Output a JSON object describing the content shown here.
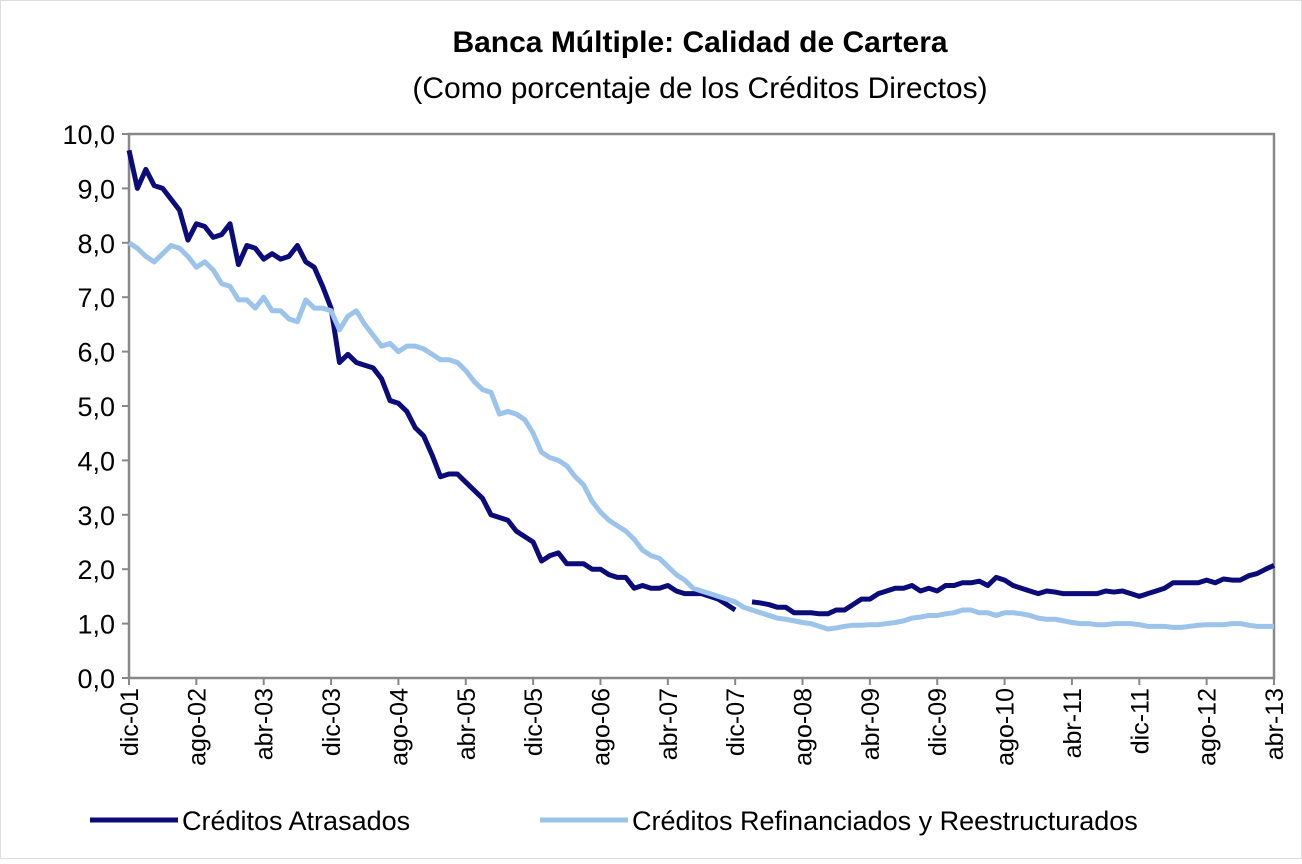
{
  "chart_data": {
    "type": "line",
    "title": "Banca Múltiple: Calidad de Cartera",
    "subtitle": "(Como porcentaje de los Créditos Directos)",
    "categories": [
      "dic-01",
      null,
      null,
      null,
      null,
      null,
      null,
      null,
      "ago-02",
      null,
      null,
      null,
      null,
      null,
      null,
      null,
      "abr-03",
      null,
      null,
      null,
      null,
      null,
      null,
      null,
      "dic-03",
      null,
      null,
      null,
      null,
      null,
      null,
      null,
      "ago-04",
      null,
      null,
      null,
      null,
      null,
      null,
      null,
      "abr-05",
      null,
      null,
      null,
      null,
      null,
      null,
      null,
      "dic-05",
      null,
      null,
      null,
      null,
      null,
      null,
      null,
      "ago-06",
      null,
      null,
      null,
      null,
      null,
      null,
      null,
      "abr-07",
      null,
      null,
      null,
      null,
      null,
      null,
      null,
      "dic-07",
      null,
      null,
      null,
      null,
      null,
      null,
      null,
      "ago-08",
      null,
      null,
      null,
      null,
      null,
      null,
      null,
      "abr-09",
      null,
      null,
      null,
      null,
      null,
      null,
      null,
      "dic-09",
      null,
      null,
      null,
      null,
      null,
      null,
      null,
      "ago-10",
      null,
      null,
      null,
      null,
      null,
      null,
      null,
      "abr-11",
      null,
      null,
      null,
      null,
      null,
      null,
      null,
      "dic-11",
      null,
      null,
      null,
      null,
      null,
      null,
      null,
      "ago-12",
      null,
      null,
      null,
      null,
      null,
      null,
      null,
      "abr-13"
    ],
    "series": [
      {
        "name": "Créditos Atrasados",
        "color": "#0b0b7a",
        "values": [
          9.7,
          9.0,
          9.35,
          9.05,
          9.0,
          8.8,
          8.6,
          8.05,
          8.35,
          8.3,
          8.1,
          8.15,
          8.35,
          7.6,
          7.95,
          7.9,
          7.7,
          7.8,
          7.7,
          7.75,
          7.95,
          7.65,
          7.55,
          7.2,
          6.8,
          5.8,
          5.95,
          5.8,
          5.75,
          5.7,
          5.5,
          5.1,
          5.05,
          4.9,
          4.6,
          4.45,
          4.1,
          3.7,
          3.75,
          3.75,
          3.6,
          3.45,
          3.3,
          3.0,
          2.95,
          2.9,
          2.7,
          2.6,
          2.5,
          2.15,
          2.25,
          2.3,
          2.1,
          2.1,
          2.1,
          2.0,
          2.0,
          1.9,
          1.85,
          1.85,
          1.65,
          1.7,
          1.65,
          1.65,
          1.7,
          1.6,
          1.55,
          1.55,
          1.55,
          1.5,
          1.45,
          1.35,
          1.25,
          null,
          1.4,
          1.38,
          1.35,
          1.3,
          1.3,
          1.2,
          1.2,
          1.2,
          1.18,
          1.18,
          1.25,
          1.25,
          1.35,
          1.45,
          1.45,
          1.55,
          1.6,
          1.65,
          1.65,
          1.7,
          1.6,
          1.65,
          1.6,
          1.7,
          1.7,
          1.75,
          1.75,
          1.78,
          1.7,
          1.85,
          1.8,
          1.7,
          1.65,
          1.6,
          1.55,
          1.6,
          1.58,
          1.55,
          1.55,
          1.55,
          1.55,
          1.55,
          1.6,
          1.58,
          1.6,
          1.55,
          1.5,
          1.55,
          1.6,
          1.65,
          1.75,
          1.75,
          1.75,
          1.75,
          1.8,
          1.75,
          1.82,
          1.8,
          1.8,
          1.88,
          1.92,
          2.0,
          2.07
        ]
      },
      {
        "name": "Créditos Refinanciados y Reestructurados",
        "color": "#9cc3ea",
        "values": [
          8.0,
          7.9,
          7.75,
          7.65,
          7.8,
          7.95,
          7.9,
          7.75,
          7.55,
          7.65,
          7.5,
          7.25,
          7.2,
          6.95,
          6.95,
          6.8,
          7.0,
          6.75,
          6.75,
          6.6,
          6.55,
          6.95,
          6.8,
          6.8,
          6.75,
          6.4,
          6.65,
          6.75,
          6.5,
          6.3,
          6.1,
          6.15,
          6.0,
          6.1,
          6.1,
          6.05,
          5.95,
          5.85,
          5.85,
          5.8,
          5.65,
          5.45,
          5.3,
          5.25,
          4.85,
          4.9,
          4.85,
          4.75,
          4.5,
          4.15,
          4.05,
          4.0,
          3.9,
          3.7,
          3.55,
          3.25,
          3.05,
          2.9,
          2.8,
          2.7,
          2.55,
          2.35,
          2.25,
          2.2,
          2.05,
          1.9,
          1.8,
          1.65,
          1.6,
          1.55,
          1.5,
          1.45,
          1.4,
          1.3,
          1.25,
          1.2,
          1.15,
          1.1,
          1.08,
          1.05,
          1.02,
          1.0,
          0.95,
          0.9,
          0.92,
          0.95,
          0.97,
          0.97,
          0.98,
          0.98,
          1.0,
          1.02,
          1.05,
          1.1,
          1.12,
          1.15,
          1.15,
          1.18,
          1.2,
          1.25,
          1.25,
          1.2,
          1.2,
          1.15,
          1.2,
          1.2,
          1.18,
          1.15,
          1.1,
          1.08,
          1.08,
          1.05,
          1.02,
          1.0,
          1.0,
          0.98,
          0.98,
          1.0,
          1.0,
          1.0,
          0.98,
          0.95,
          0.95,
          0.95,
          0.93,
          0.93,
          0.95,
          0.97,
          0.98,
          0.98,
          0.98,
          1.0,
          1.0,
          0.97,
          0.95,
          0.95,
          0.95
        ]
      }
    ],
    "ylim": [
      0,
      10
    ],
    "yticks": [
      {
        "value": 0,
        "label": "0,0"
      },
      {
        "value": 1,
        "label": "1,0"
      },
      {
        "value": 2,
        "label": "2,0"
      },
      {
        "value": 3,
        "label": "3,0"
      },
      {
        "value": 4,
        "label": "4,0"
      },
      {
        "value": 5,
        "label": "5,0"
      },
      {
        "value": 6,
        "label": "6,0"
      },
      {
        "value": 7,
        "label": "7,0"
      },
      {
        "value": 8,
        "label": "8,0"
      },
      {
        "value": 9,
        "label": "9,0"
      },
      {
        "value": 10,
        "label": "10,0"
      }
    ],
    "grid": false,
    "legend": "bottom"
  }
}
